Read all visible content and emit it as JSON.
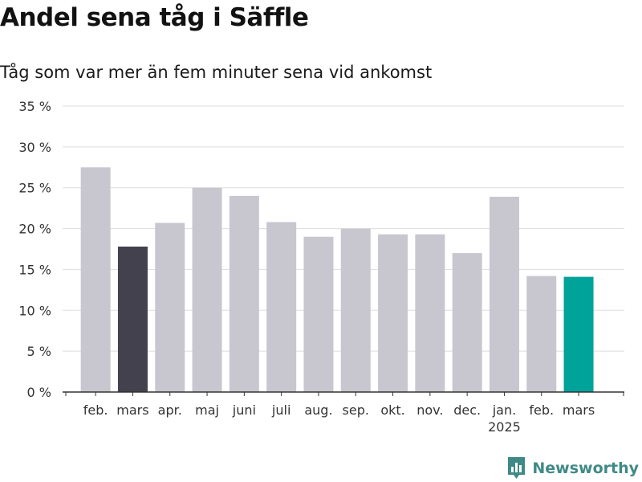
{
  "header": {
    "title": "Andel sena tåg i Säffle",
    "subtitle": "Tåg som var mer än fem minuter sena vid ankomst"
  },
  "brand": {
    "name": "Newsworthy",
    "color": "#3f8a86"
  },
  "chart_data": {
    "type": "bar",
    "title": "Andel sena tåg i Säffle",
    "subtitle": "Tåg som var mer än fem minuter sena vid ankomst",
    "xlabel": "",
    "ylabel": "",
    "ylim": [
      0,
      35
    ],
    "yticks": [
      0,
      5,
      10,
      15,
      20,
      25,
      30,
      35
    ],
    "ytick_labels": [
      "0 %",
      "5 %",
      "10 %",
      "15 %",
      "20 %",
      "25 %",
      "30 %",
      "35 %"
    ],
    "grid": true,
    "categories": [
      {
        "label": "feb.",
        "sub": ""
      },
      {
        "label": "mars",
        "sub": ""
      },
      {
        "label": "apr.",
        "sub": ""
      },
      {
        "label": "maj",
        "sub": ""
      },
      {
        "label": "juni",
        "sub": ""
      },
      {
        "label": "juli",
        "sub": ""
      },
      {
        "label": "aug.",
        "sub": ""
      },
      {
        "label": "sep.",
        "sub": ""
      },
      {
        "label": "okt.",
        "sub": ""
      },
      {
        "label": "nov.",
        "sub": ""
      },
      {
        "label": "dec.",
        "sub": ""
      },
      {
        "label": "jan.",
        "sub": "2025"
      },
      {
        "label": "feb.",
        "sub": ""
      },
      {
        "label": "mars",
        "sub": ""
      }
    ],
    "values": [
      27.5,
      17.8,
      20.7,
      25.0,
      24.0,
      20.8,
      19.0,
      20.0,
      19.3,
      19.3,
      17.0,
      23.9,
      14.2,
      14.1
    ],
    "colors": {
      "default": "#c8c7d0",
      "highlight_previous": "#42414d",
      "highlight_current": "#00a39a",
      "grid": "#dddddd",
      "axis": "#333333"
    },
    "highlight": {
      "previous_index": 1,
      "current_index": 13
    }
  }
}
